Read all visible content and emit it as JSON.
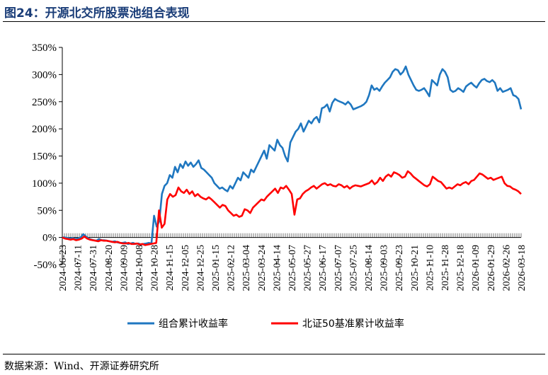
{
  "figure_title": "图24：开源北交所股票池组合表现",
  "source": "数据来源：Wind、开源证券研究所",
  "colors": {
    "portfolio": "#1f77c0",
    "benchmark": "#ff0000",
    "title": "#1a3d78"
  },
  "chart_data": {
    "type": "line",
    "title": "",
    "xlabel": "",
    "ylabel": "",
    "ylim": [
      -50,
      350
    ],
    "yticks": [
      "-50%",
      "0%",
      "50%",
      "100%",
      "150%",
      "200%",
      "250%",
      "300%",
      "350%"
    ],
    "x_tick_labels": [
      "2024-06-23",
      "2024-07-11",
      "2024-07-31",
      "2024-08-20",
      "2024-09-09",
      "2024-10-08",
      "2024-10-28",
      "2024-11-15",
      "2024-12-05",
      "2024-12-25",
      "2025-01-15",
      "2025-02-12",
      "2025-03-04",
      "2025-03-24",
      "2025-04-14",
      "2025-05-07",
      "2025-05-27",
      "2025-06-17",
      "2025-07-07",
      "2025-07-25",
      "2025-08-14",
      "2025-09-03",
      "2025-09-23",
      "2025-10-21",
      "2025-11-10",
      "2025-11-28",
      "2025-12-18",
      "2026-01-09",
      "2026-01-29",
      "2026-02-26",
      "2026-03-18"
    ],
    "legend_position": "bottom",
    "series": [
      {
        "name": "组合累计收益率",
        "color": "#1f77c0",
        "values": [
          0,
          0,
          -1,
          -2,
          -1,
          -3,
          -2,
          0,
          6,
          2,
          -2,
          -4,
          -5,
          -6,
          -3,
          -5,
          -5,
          -6,
          -7,
          -8,
          -7,
          -9,
          -10,
          -10,
          -9,
          -12,
          -11,
          -10,
          -12,
          -11,
          -13,
          -12,
          -11,
          -10,
          -11,
          40,
          20,
          30,
          80,
          95,
          100,
          115,
          110,
          130,
          120,
          135,
          128,
          140,
          132,
          138,
          130,
          135,
          142,
          128,
          125,
          120,
          115,
          110,
          100,
          95,
          90,
          92,
          88,
          85,
          95,
          90,
          100,
          110,
          105,
          120,
          115,
          110,
          125,
          120,
          130,
          140,
          150,
          160,
          145,
          170,
          165,
          160,
          180,
          170,
          165,
          150,
          140,
          175,
          185,
          195,
          200,
          210,
          195,
          205,
          215,
          210,
          218,
          222,
          212,
          238,
          240,
          245,
          232,
          248,
          255,
          252,
          250,
          248,
          245,
          250,
          245,
          236,
          238,
          240,
          242,
          245,
          250,
          262,
          280,
          272,
          275,
          270,
          278,
          285,
          290,
          295,
          305,
          310,
          308,
          300,
          305,
          315,
          300,
          290,
          280,
          272,
          270,
          272,
          275,
          268,
          260,
          290,
          285,
          280,
          300,
          310,
          305,
          295,
          272,
          268,
          270,
          275,
          272,
          268,
          278,
          282,
          285,
          280,
          276,
          284,
          290,
          292,
          288,
          286,
          290,
          285,
          270,
          275,
          268,
          270,
          272,
          275,
          262,
          260,
          255,
          236
        ]
      },
      {
        "name": "北证50基准累计收益率",
        "color": "#ff0000",
        "values": [
          0,
          -2,
          -3,
          -4,
          -3,
          -5,
          -4,
          -2,
          2,
          -2,
          -4,
          -5,
          -6,
          -7,
          -5,
          -6,
          -6,
          -7,
          -8,
          -9,
          -8,
          -10,
          -11,
          -11,
          -10,
          -12,
          -12,
          -11,
          -13,
          -12,
          -14,
          -13,
          -12,
          -11,
          -10,
          50,
          18,
          25,
          70,
          80,
          75,
          78,
          92,
          85,
          82,
          88,
          80,
          85,
          76,
          80,
          75,
          72,
          70,
          74,
          70,
          65,
          60,
          55,
          60,
          58,
          50,
          45,
          40,
          42,
          38,
          40,
          52,
          50,
          45,
          55,
          60,
          65,
          70,
          68,
          75,
          80,
          85,
          90,
          82,
          92,
          90,
          95,
          88,
          80,
          42,
          70,
          72,
          80,
          85,
          88,
          92,
          95,
          90,
          94,
          98,
          100,
          96,
          98,
          95,
          94,
          98,
          96,
          92,
          95,
          90,
          94,
          96,
          95,
          94,
          96,
          98,
          100,
          105,
          98,
          102,
          110,
          104,
          112,
          116,
          112,
          120,
          118,
          115,
          110,
          112,
          122,
          118,
          112,
          108,
          104,
          100,
          96,
          94,
          98,
          112,
          108,
          104,
          102,
          96,
          90,
          92,
          90,
          94,
          98,
          96,
          100,
          102,
          98,
          104,
          106,
          112,
          118,
          116,
          112,
          108,
          110,
          106,
          108,
          110,
          112,
          100,
          95,
          94,
          90,
          88,
          85,
          80
        ]
      }
    ]
  }
}
